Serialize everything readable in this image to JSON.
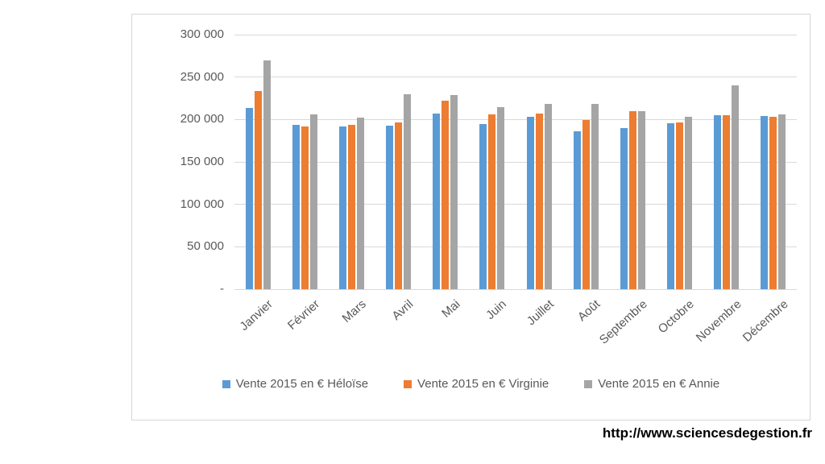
{
  "page": {
    "url_label": "http://www.sciencesdegestion.fr"
  },
  "chart_data": {
    "type": "bar",
    "title": "",
    "xlabel": "",
    "ylabel": "",
    "categories": [
      "Janvier",
      "Février",
      "Mars",
      "Avril",
      "Mai",
      "Juin",
      "Juillet",
      "Août",
      "Septembre",
      "Octobre",
      "Novembre",
      "Décembre"
    ],
    "series": [
      {
        "name": "Vente 2015 en € Héloïse",
        "color": "#5B9BD5",
        "values": [
          214000,
          194000,
          192000,
          193000,
          207000,
          195000,
          203000,
          186000,
          190000,
          196000,
          205000,
          204000
        ]
      },
      {
        "name": "Vente 2015 en € Virginie",
        "color": "#ED7D31",
        "values": [
          234000,
          192000,
          194000,
          197000,
          222000,
          206000,
          207000,
          199000,
          210000,
          197000,
          205000,
          203000
        ]
      },
      {
        "name": "Vente 2015 en € Annie",
        "color": "#A5A5A5",
        "values": [
          270000,
          206000,
          202000,
          230000,
          229000,
          215000,
          218000,
          218000,
          210000,
          203000,
          240000,
          206000
        ]
      }
    ],
    "ylim": [
      0,
      300000
    ],
    "ytick_step": 50000,
    "ytick_labels": [
      "-",
      "50 000",
      "100 000",
      "150 000",
      "200 000",
      "250 000",
      "300 000"
    ],
    "grid": true,
    "legend_position": "bottom",
    "colors": {
      "gridline": "#d9d9d9",
      "axis_text": "#595959"
    }
  }
}
